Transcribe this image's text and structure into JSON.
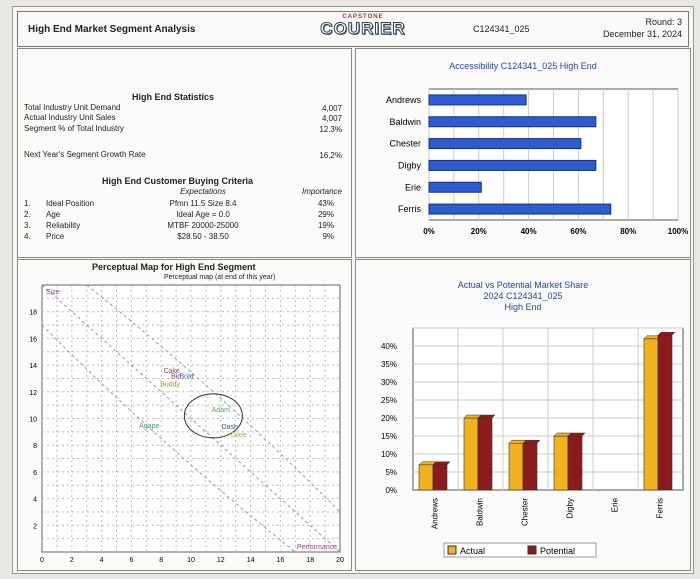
{
  "header": {
    "title": "High End Market Segment Analysis",
    "logo_top": "CAPSTONE",
    "logo_main": "COURIER",
    "company_code": "C124341_025",
    "round": "Round: 3",
    "date": "December 31, 2024"
  },
  "stats": {
    "title": "High End Statistics",
    "rows": [
      {
        "label": "Total Industry Unit Demand",
        "value": "4,007"
      },
      {
        "label": "Actual Industry Unit Sales",
        "value": "4,007"
      },
      {
        "label": "Segment % of Total Industry",
        "value": "12.3%"
      }
    ],
    "growth_label": "Next Year's Segment Growth Rate",
    "growth_value": "16.2%"
  },
  "criteria": {
    "title": "High End Customer Buying Criteria",
    "expectations_header": "Expectations",
    "importance_header": "Importance",
    "rows": [
      {
        "num": "1.",
        "name": "Ideal Position",
        "expectation": "Pfmn 11.5 Size 8.4",
        "importance": "43%"
      },
      {
        "num": "2.",
        "name": "Age",
        "expectation": "Ideal Age = 0.0",
        "importance": "29%"
      },
      {
        "num": "3.",
        "name": "Reliability",
        "expectation": "MTBF 20000-25000",
        "importance": "19%"
      },
      {
        "num": "4.",
        "name": "Price",
        "expectation": "$28.50 - 38.50",
        "importance": "9%"
      }
    ]
  },
  "perceptual_map": {
    "title": "Perceptual Map for High End Segment",
    "subtitle": "Perceptual map (at end of this year)",
    "y_label": "Size",
    "x_label": "Performance",
    "x_ticks": [
      "0",
      "2",
      "4",
      "6",
      "8",
      "10",
      "12",
      "14",
      "16",
      "18",
      "20"
    ],
    "y_ticks": [
      "2",
      "4",
      "6",
      "8",
      "10",
      "12",
      "14",
      "16",
      "18"
    ],
    "products": [
      {
        "name": "Cake",
        "pfmn": 8.7,
        "size": 13.4,
        "color": "#b04050"
      },
      {
        "name": "Bid",
        "pfmn": 9.0,
        "size": 13.0,
        "color": "#7a3fa0"
      },
      {
        "name": "Bold",
        "pfmn": 9.7,
        "size": 13.0,
        "color": "#3a6ab8"
      },
      {
        "name": "Buddy",
        "pfmn": 8.6,
        "size": 12.4,
        "color": "#b08a3a"
      },
      {
        "name": "Adam",
        "pfmn": 12.0,
        "size": 10.5,
        "color": "#5aa86a"
      },
      {
        "name": "Agape",
        "pfmn": 7.2,
        "size": 9.3,
        "color": "#4a9a6a"
      },
      {
        "name": "Dash",
        "pfmn": 12.6,
        "size": 9.2,
        "color": "#3a5ab0"
      },
      {
        "name": "Dixie",
        "pfmn": 13.2,
        "size": 8.6,
        "color": "#c0a030"
      }
    ]
  },
  "accessibility": {
    "title": "Accessibility C124341_025 High End",
    "companies": [
      "Andrews",
      "Baldwin",
      "Chester",
      "Digby",
      "Erie",
      "Ferris"
    ],
    "values": [
      39,
      67,
      61,
      67,
      21,
      73
    ],
    "x_ticks": [
      "0%",
      "20%",
      "40%",
      "60%",
      "80%",
      "100%"
    ],
    "color": "#2f5bd0"
  },
  "chart_data": [
    {
      "type": "bar",
      "title": "Accessibility C124341_025 High End",
      "orientation": "horizontal",
      "categories": [
        "Andrews",
        "Baldwin",
        "Chester",
        "Digby",
        "Erie",
        "Ferris"
      ],
      "values": [
        39,
        67,
        61,
        67,
        21,
        73
      ],
      "xlim": [
        0,
        100
      ],
      "grid": true
    },
    {
      "type": "bar",
      "title": "Actual vs Potential Market Share",
      "subtitle": "2024 C124341_025",
      "subtitle2": "High End",
      "categories": [
        "Andrews",
        "Baldwin",
        "Chester",
        "Digby",
        "Erie",
        "Ferris"
      ],
      "series": [
        {
          "name": "Actual",
          "values": [
            7,
            20,
            13,
            15,
            0,
            42
          ],
          "color": "#f0b21e"
        },
        {
          "name": "Potential",
          "values": [
            7,
            20,
            13,
            15,
            0,
            43
          ],
          "color": "#8c1c1c"
        }
      ],
      "y_ticks": [
        "0%",
        "5%",
        "10%",
        "15%",
        "20%",
        "25%",
        "30%",
        "35%",
        "40%"
      ],
      "ylim": [
        0,
        45
      ],
      "legend": "bottom",
      "grid": true
    }
  ]
}
